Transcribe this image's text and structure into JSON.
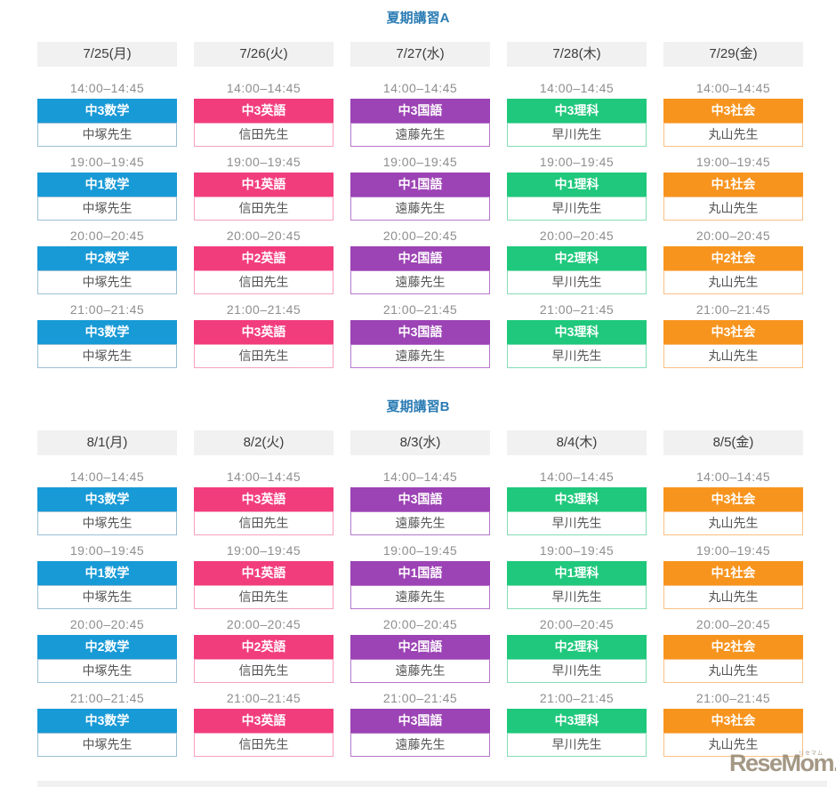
{
  "sections": [
    {
      "title": "夏期講習A",
      "columns": [
        {
          "date": "7/25(月)",
          "subject_color": "#189ad6",
          "border_color": "#9bbfd6",
          "slots": [
            {
              "time": "14:00–14:45",
              "subject": "中3数学",
              "teacher": "中塚先生"
            },
            {
              "time": "19:00–19:45",
              "subject": "中1数学",
              "teacher": "中塚先生"
            },
            {
              "time": "20:00–20:45",
              "subject": "中2数学",
              "teacher": "中塚先生"
            },
            {
              "time": "21:00–21:45",
              "subject": "中3数学",
              "teacher": "中塚先生"
            }
          ]
        },
        {
          "date": "7/26(火)",
          "subject_color": "#f23d7d",
          "border_color": "#f5a2bf",
          "slots": [
            {
              "time": "14:00–14:45",
              "subject": "中3英語",
              "teacher": "信田先生"
            },
            {
              "time": "19:00–19:45",
              "subject": "中1英語",
              "teacher": "信田先生"
            },
            {
              "time": "20:00–20:45",
              "subject": "中2英語",
              "teacher": "信田先生"
            },
            {
              "time": "21:00–21:45",
              "subject": "中3英語",
              "teacher": "信田先生"
            }
          ]
        },
        {
          "date": "7/27(水)",
          "subject_color": "#9c43b5",
          "border_color": "#b678cb",
          "slots": [
            {
              "time": "14:00–14:45",
              "subject": "中3国語",
              "teacher": "遠藤先生"
            },
            {
              "time": "19:00–19:45",
              "subject": "中1国語",
              "teacher": "遠藤先生"
            },
            {
              "time": "20:00–20:45",
              "subject": "中2国語",
              "teacher": "遠藤先生"
            },
            {
              "time": "21:00–21:45",
              "subject": "中3国語",
              "teacher": "遠藤先生"
            }
          ]
        },
        {
          "date": "7/28(木)",
          "subject_color": "#1fc87c",
          "border_color": "#85dcb6",
          "slots": [
            {
              "time": "14:00–14:45",
              "subject": "中3理科",
              "teacher": "早川先生"
            },
            {
              "time": "19:00–19:45",
              "subject": "中1理科",
              "teacher": "早川先生"
            },
            {
              "time": "20:00–20:45",
              "subject": "中2理科",
              "teacher": "早川先生"
            },
            {
              "time": "21:00–21:45",
              "subject": "中3理科",
              "teacher": "早川先生"
            }
          ]
        },
        {
          "date": "7/29(金)",
          "subject_color": "#f7941e",
          "border_color": "#fac084",
          "slots": [
            {
              "time": "14:00–14:45",
              "subject": "中3社会",
              "teacher": "丸山先生"
            },
            {
              "time": "19:00–19:45",
              "subject": "中1社会",
              "teacher": "丸山先生"
            },
            {
              "time": "20:00–20:45",
              "subject": "中2社会",
              "teacher": "丸山先生"
            },
            {
              "time": "21:00–21:45",
              "subject": "中3社会",
              "teacher": "丸山先生"
            }
          ]
        }
      ]
    },
    {
      "title": "夏期講習B",
      "columns": [
        {
          "date": "8/1(月)",
          "subject_color": "#189ad6",
          "border_color": "#9bbfd6",
          "slots": [
            {
              "time": "14:00–14:45",
              "subject": "中3数学",
              "teacher": "中塚先生"
            },
            {
              "time": "19:00–19:45",
              "subject": "中1数学",
              "teacher": "中塚先生"
            },
            {
              "time": "20:00–20:45",
              "subject": "中2数学",
              "teacher": "中塚先生"
            },
            {
              "time": "21:00–21:45",
              "subject": "中3数学",
              "teacher": "中塚先生"
            }
          ]
        },
        {
          "date": "8/2(火)",
          "subject_color": "#f23d7d",
          "border_color": "#f5a2bf",
          "slots": [
            {
              "time": "14:00–14:45",
              "subject": "中3英語",
              "teacher": "信田先生"
            },
            {
              "time": "19:00–19:45",
              "subject": "中1英語",
              "teacher": "信田先生"
            },
            {
              "time": "20:00–20:45",
              "subject": "中2英語",
              "teacher": "信田先生"
            },
            {
              "time": "21:00–21:45",
              "subject": "中3英語",
              "teacher": "信田先生"
            }
          ]
        },
        {
          "date": "8/3(水)",
          "subject_color": "#9c43b5",
          "border_color": "#b678cb",
          "slots": [
            {
              "time": "14:00–14:45",
              "subject": "中3国語",
              "teacher": "遠藤先生"
            },
            {
              "time": "19:00–19:45",
              "subject": "中1国語",
              "teacher": "遠藤先生"
            },
            {
              "time": "20:00–20:45",
              "subject": "中2国語",
              "teacher": "遠藤先生"
            },
            {
              "time": "21:00–21:45",
              "subject": "中3国語",
              "teacher": "遠藤先生"
            }
          ]
        },
        {
          "date": "8/4(木)",
          "subject_color": "#1fc87c",
          "border_color": "#85dcb6",
          "slots": [
            {
              "time": "14:00–14:45",
              "subject": "中3理科",
              "teacher": "早川先生"
            },
            {
              "time": "19:00–19:45",
              "subject": "中1理科",
              "teacher": "早川先生"
            },
            {
              "time": "20:00–20:45",
              "subject": "中2理科",
              "teacher": "早川先生"
            },
            {
              "time": "21:00–21:45",
              "subject": "中3理科",
              "teacher": "早川先生"
            }
          ]
        },
        {
          "date": "8/5(金)",
          "subject_color": "#f7941e",
          "border_color": "#fac084",
          "slots": [
            {
              "time": "14:00–14:45",
              "subject": "中3社会",
              "teacher": "丸山先生"
            },
            {
              "time": "19:00–19:45",
              "subject": "中1社会",
              "teacher": "丸山先生"
            },
            {
              "time": "20:00–20:45",
              "subject": "中2社会",
              "teacher": "丸山先生"
            },
            {
              "time": "21:00–21:45",
              "subject": "中3社会",
              "teacher": "丸山先生"
            }
          ]
        }
      ]
    }
  ],
  "logo": {
    "brand": "ReseMom.",
    "ruby": "リセマム"
  },
  "colors": {
    "title_blue": "#2b7cb4",
    "day_header_bg": "#f1f1f1",
    "math_blue": "#189ad6",
    "english_pink": "#f23d7d",
    "japanese_purple": "#9c43b5",
    "science_green": "#1fc87c",
    "social_orange": "#f7941e"
  }
}
